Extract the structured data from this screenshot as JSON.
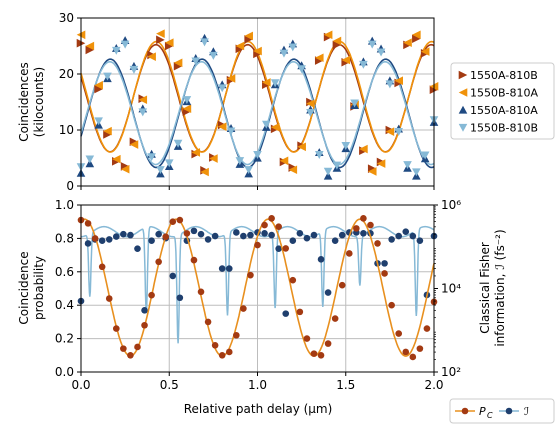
{
  "colors": {
    "c1550A_810B": "#a33a12",
    "c1550B_810A": "#f0920a",
    "c1550A_810A": "#1f4a82",
    "c1550B_810B": "#86b9d6",
    "pc": "#e8901f",
    "pc_marker": "#a33a12",
    "fisher": "#86b9d6",
    "fisher_marker": "#1f3f6e",
    "grid": "#bdbdbd"
  },
  "chart_data": [
    {
      "type": "line",
      "panel": "top",
      "ylabel_line1": "Coincidences",
      "ylabel_line2": "(kilocounts)",
      "xlim": [
        0,
        2.0
      ],
      "ylim": [
        0,
        30
      ],
      "yticks": [
        "0",
        "10",
        "20",
        "30"
      ],
      "grid": true,
      "legend_position": "right",
      "fringe_period_um": 0.52,
      "series": [
        {
          "name": "1550A-810B",
          "marker": "triangle-right",
          "color_key": "c1550A_810B",
          "x": [
            0.0,
            0.05,
            0.1,
            0.15,
            0.2,
            0.25,
            0.3,
            0.35,
            0.4,
            0.45,
            0.5,
            0.55,
            0.6,
            0.65,
            0.7,
            0.75,
            0.8,
            0.85,
            0.9,
            0.95,
            1.0,
            1.05,
            1.1,
            1.15,
            1.2,
            1.25,
            1.3,
            1.35,
            1.4,
            1.45,
            1.5,
            1.55,
            1.6,
            1.65,
            1.7,
            1.75,
            1.8,
            1.85,
            1.9,
            1.95,
            2.0
          ],
          "y": [
            25.5,
            24.3,
            17.3,
            9.2,
            4.4,
            3.5,
            7.9,
            15.6,
            23.4,
            26.1,
            25.0,
            21.4,
            13.3,
            5.7,
            2.8,
            5.1,
            10.9,
            18.9,
            24.5,
            26.2,
            23.6,
            18.1,
            10.2,
            4.3,
            3.3,
            7.2,
            15.0,
            22.4,
            26.6,
            25.2,
            22.1,
            14.2,
            6.3,
            3.1,
            4.3,
            10.0,
            18.4,
            25.2,
            26.3,
            23.7,
            17.2
          ]
        },
        {
          "name": "1550B-810A",
          "marker": "triangle-left",
          "color_key": "c1550B_810A",
          "x": [
            0.0,
            0.05,
            0.1,
            0.15,
            0.2,
            0.25,
            0.3,
            0.35,
            0.4,
            0.45,
            0.5,
            0.55,
            0.6,
            0.65,
            0.7,
            0.75,
            0.8,
            0.85,
            0.9,
            0.95,
            1.0,
            1.05,
            1.1,
            1.15,
            1.2,
            1.25,
            1.3,
            1.35,
            1.4,
            1.45,
            1.5,
            1.55,
            1.6,
            1.65,
            1.7,
            1.75,
            1.8,
            1.85,
            1.9,
            1.95,
            2.0
          ],
          "y": [
            27.0,
            25.0,
            18.0,
            9.8,
            4.8,
            3.0,
            7.4,
            15.4,
            23.1,
            27.2,
            25.6,
            22.0,
            13.8,
            6.0,
            2.5,
            4.9,
            10.6,
            19.2,
            25.0,
            26.8,
            24.1,
            18.5,
            10.5,
            4.5,
            2.9,
            7.0,
            14.7,
            22.9,
            27.0,
            25.9,
            22.5,
            14.5,
            6.6,
            2.6,
            4.0,
            9.7,
            18.8,
            25.6,
            27.0,
            24.0,
            17.8
          ]
        },
        {
          "name": "1550A-810A",
          "marker": "triangle-up",
          "color_key": "c1550A_810A",
          "x": [
            0.0,
            0.05,
            0.1,
            0.15,
            0.2,
            0.25,
            0.3,
            0.35,
            0.4,
            0.45,
            0.5,
            0.55,
            0.6,
            0.65,
            0.7,
            0.75,
            0.8,
            0.85,
            0.9,
            0.95,
            1.0,
            1.05,
            1.1,
            1.15,
            1.2,
            1.25,
            1.3,
            1.35,
            1.4,
            1.45,
            1.5,
            1.55,
            1.6,
            1.65,
            1.7,
            1.75,
            1.8,
            1.85,
            1.9,
            1.95,
            2.0
          ],
          "y": [
            2.3,
            4.0,
            10.9,
            19.2,
            24.6,
            26.0,
            21.4,
            13.8,
            5.7,
            2.2,
            3.5,
            7.1,
            15.1,
            22.8,
            26.4,
            24.0,
            18.1,
            10.3,
            3.9,
            2.2,
            5.0,
            10.5,
            18.1,
            24.3,
            25.4,
            21.5,
            13.6,
            6.0,
            1.8,
            3.2,
            6.7,
            14.4,
            22.2,
            25.9,
            24.5,
            18.8,
            10.2,
            3.2,
            1.8,
            4.9,
            11.4
          ]
        },
        {
          "name": "1550B-810B",
          "marker": "triangle-down",
          "color_key": "c1550B_810B",
          "x": [
            0.0,
            0.05,
            0.1,
            0.15,
            0.2,
            0.25,
            0.3,
            0.35,
            0.4,
            0.45,
            0.5,
            0.55,
            0.6,
            0.65,
            0.7,
            0.75,
            0.8,
            0.85,
            0.9,
            0.95,
            1.0,
            1.05,
            1.1,
            1.15,
            1.2,
            1.25,
            1.3,
            1.35,
            1.4,
            1.45,
            1.5,
            1.55,
            1.6,
            1.65,
            1.7,
            1.75,
            1.8,
            1.85,
            1.9,
            1.95,
            2.0
          ],
          "y": [
            3.4,
            4.8,
            11.6,
            19.6,
            24.2,
            25.3,
            20.8,
            13.2,
            5.2,
            2.9,
            4.1,
            7.6,
            15.4,
            22.3,
            25.7,
            23.3,
            17.5,
            9.8,
            4.5,
            2.9,
            5.6,
            11.0,
            18.4,
            23.7,
            24.8,
            20.9,
            13.1,
            5.6,
            2.6,
            3.7,
            7.2,
            14.8,
            21.7,
            25.3,
            23.9,
            18.2,
            9.7,
            3.8,
            2.5,
            5.5,
            11.8
          ]
        }
      ]
    },
    {
      "type": "line",
      "panel": "bottom",
      "xlabel": "Relative path delay (µm)",
      "ylabel_line1": "Coincidence",
      "ylabel_line2": "probability",
      "y2label_line1": "Classical Fisher",
      "y2label_line2": "information, ℐ (fs⁻²)",
      "xlim": [
        0,
        2.0
      ],
      "ylim": [
        0,
        1.0
      ],
      "y2lim": [
        100,
        1000000
      ],
      "y2scale": "log",
      "xticks": [
        "0.0",
        "0.5",
        "1.0",
        "1.5",
        "2.0"
      ],
      "yticks": [
        "0.0",
        "0.2",
        "0.4",
        "0.6",
        "0.8",
        "1.0"
      ],
      "y2ticks": [
        "10²",
        "10⁴",
        "10⁶"
      ],
      "grid": true,
      "legend_position": "bottom-right",
      "series": [
        {
          "name": "P_C",
          "legend_label": "P",
          "legend_sub": "C",
          "color_key": "pc",
          "marker_color_key": "pc_marker",
          "marker": "circle",
          "x": [
            0.0,
            0.04,
            0.08,
            0.12,
            0.16,
            0.2,
            0.24,
            0.28,
            0.32,
            0.36,
            0.4,
            0.44,
            0.48,
            0.52,
            0.56,
            0.6,
            0.64,
            0.68,
            0.72,
            0.76,
            0.8,
            0.84,
            0.88,
            0.92,
            0.96,
            1.0,
            1.04,
            1.08,
            1.12,
            1.16,
            1.2,
            1.24,
            1.28,
            1.32,
            1.36,
            1.4,
            1.44,
            1.48,
            1.52,
            1.56,
            1.6,
            1.64,
            1.68,
            1.72,
            1.76,
            1.8,
            1.84,
            1.88,
            1.92,
            1.96,
            2.0
          ],
          "y": [
            0.91,
            0.89,
            0.8,
            0.63,
            0.44,
            0.26,
            0.14,
            0.1,
            0.15,
            0.28,
            0.46,
            0.66,
            0.81,
            0.9,
            0.91,
            0.83,
            0.67,
            0.48,
            0.3,
            0.16,
            0.1,
            0.12,
            0.22,
            0.38,
            0.58,
            0.76,
            0.88,
            0.92,
            0.87,
            0.74,
            0.55,
            0.36,
            0.2,
            0.11,
            0.1,
            0.17,
            0.32,
            0.52,
            0.71,
            0.86,
            0.92,
            0.88,
            0.77,
            0.59,
            0.4,
            0.23,
            0.12,
            0.09,
            0.14,
            0.26,
            0.42
          ]
        },
        {
          "name": "Fisher",
          "legend_label": "ℐ",
          "color_key": "fisher",
          "marker_color_key": "fisher_marker",
          "marker": "circle",
          "x": [
            0.0,
            0.04,
            0.08,
            0.12,
            0.16,
            0.2,
            0.24,
            0.28,
            0.32,
            0.36,
            0.4,
            0.44,
            0.48,
            0.52,
            0.56,
            0.6,
            0.64,
            0.68,
            0.72,
            0.76,
            0.8,
            0.84,
            0.88,
            0.92,
            0.96,
            1.0,
            1.04,
            1.08,
            1.12,
            1.16,
            1.2,
            1.24,
            1.28,
            1.32,
            1.36,
            1.4,
            1.44,
            1.48,
            1.52,
            1.56,
            1.6,
            1.64,
            1.68,
            1.72,
            1.76,
            1.8,
            1.84,
            1.88,
            1.92,
            1.96,
            2.0
          ],
          "y": [
            5000,
            120000,
            150000,
            140000,
            150000,
            175000,
            200000,
            190000,
            90000,
            3000,
            140000,
            200000,
            160000,
            20000,
            6000,
            140000,
            240000,
            200000,
            150000,
            180000,
            30000,
            30000,
            220000,
            180000,
            190000,
            220000,
            210000,
            190000,
            90000,
            2500,
            140000,
            210000,
            160000,
            190000,
            50000,
            8000,
            140000,
            190000,
            220000,
            220000,
            210000,
            210000,
            40000,
            40000,
            150000,
            180000,
            230000,
            180000,
            140000,
            7000,
            180000
          ],
          "curve_dips_x": [
            0.05,
            0.37,
            0.55,
            0.83,
            1.1,
            1.37,
            1.58,
            1.9
          ],
          "curve_dips_y": [
            7000,
            2000,
            600,
            2500,
            3500,
            3500,
            15000,
            2000
          ]
        }
      ]
    }
  ]
}
